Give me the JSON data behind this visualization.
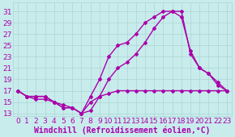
{
  "background_color": "#c8ecec",
  "grid_color": "#b0d8d8",
  "line_color": "#aa00aa",
  "xlabel": "Windchill (Refroidissement éolien,°C)",
  "xlim": [
    -0.5,
    23.5
  ],
  "ylim": [
    12.5,
    32.5
  ],
  "xticks": [
    0,
    1,
    2,
    3,
    4,
    5,
    6,
    7,
    8,
    9,
    10,
    11,
    12,
    13,
    14,
    15,
    16,
    17,
    18,
    19,
    20,
    21,
    22,
    23
  ],
  "yticks": [
    13,
    15,
    17,
    19,
    21,
    23,
    25,
    27,
    29,
    31
  ],
  "line1_x": [
    0,
    1,
    2,
    3,
    4,
    5,
    6,
    7,
    8,
    9,
    10,
    11,
    12,
    13,
    14,
    15,
    16,
    17,
    18,
    19,
    20,
    21,
    22,
    23
  ],
  "line1_y": [
    17,
    16,
    16,
    16,
    15,
    14,
    14,
    13,
    15,
    16,
    16.5,
    17,
    17,
    17,
    17,
    17,
    17,
    17,
    17,
    17,
    17,
    17,
    17,
    17
  ],
  "line2_x": [
    0,
    1,
    2,
    3,
    4,
    5,
    6,
    7,
    8,
    9,
    10,
    11,
    12,
    13,
    14,
    15,
    16,
    17,
    18,
    19,
    20,
    21,
    22,
    23
  ],
  "line2_y": [
    17,
    16,
    16,
    16,
    15,
    14,
    14,
    13,
    16,
    19,
    23,
    25,
    25.5,
    27,
    29,
    30,
    31,
    31,
    30,
    24,
    21,
    20,
    18,
    17
  ],
  "line3_x": [
    0,
    1,
    2,
    3,
    4,
    5,
    6,
    7,
    8,
    9,
    10,
    11,
    12,
    13,
    14,
    15,
    16,
    17,
    18,
    19,
    20,
    21,
    22,
    23
  ],
  "line3_y": [
    17,
    16,
    15.5,
    15.5,
    15,
    14.5,
    14,
    13,
    13.5,
    16,
    19,
    21,
    22,
    23.5,
    25.5,
    28,
    30,
    31,
    31,
    23.5,
    21,
    20,
    18.5,
    17
  ],
  "marker": "D",
  "markersize": 2.0,
  "linewidth": 1.0,
  "fontsize_label": 7,
  "fontsize_tick": 6.5
}
